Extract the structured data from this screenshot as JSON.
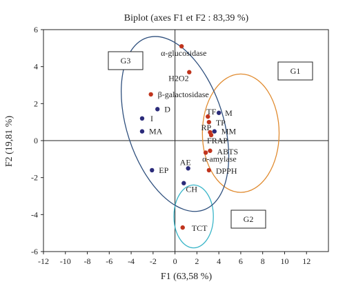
{
  "chart_data": {
    "type": "scatter",
    "title": "Biplot (axes F1 et F2 : 83,39 %)",
    "xlabel": "F1 (63,58 %)",
    "ylabel": "F2 (19,81 %)",
    "xlim": [
      -12,
      14
    ],
    "ylim": [
      -6,
      6
    ],
    "xticks": [
      -12,
      -10,
      -8,
      -6,
      -4,
      -2,
      0,
      2,
      4,
      6,
      8,
      10,
      12
    ],
    "yticks": [
      -6,
      -4,
      -2,
      0,
      2,
      4,
      6
    ],
    "grid": false,
    "legend": "none",
    "colors": {
      "variables": "#c0341d",
      "observations": "#2b2b7a"
    },
    "series": [
      {
        "points": [
          {
            "label": "α-glucosidase",
            "x": 0.6,
            "y": 5.1
          },
          {
            "label": "H2O2",
            "x": 1.3,
            "y": 3.7
          },
          {
            "label": "β-galactosidase",
            "x": -2.2,
            "y": 2.5
          },
          {
            "label": "TF",
            "x": 3.0,
            "y": 1.3
          },
          {
            "label": "TP",
            "x": 3.1,
            "y": 1.0
          },
          {
            "label": "RP",
            "x": 3.2,
            "y": 0.45
          },
          {
            "label": "FRAP",
            "x": 3.3,
            "y": 0.3
          },
          {
            "label": "ABTS",
            "x": 3.2,
            "y": -0.55
          },
          {
            "label": "α-amylase",
            "x": 2.8,
            "y": -0.65
          },
          {
            "label": "DPPH",
            "x": 3.1,
            "y": -1.6
          },
          {
            "label": "TCT",
            "x": 0.7,
            "y": -4.7
          }
        ]
      },
      {
        "points": [
          {
            "label": "D",
            "x": -1.6,
            "y": 1.7
          },
          {
            "label": "I",
            "x": -3.0,
            "y": 1.2
          },
          {
            "label": "MA",
            "x": -3.0,
            "y": 0.5
          },
          {
            "label": "M",
            "x": 4.0,
            "y": 1.5
          },
          {
            "label": "MM",
            "x": 3.6,
            "y": 0.5
          },
          {
            "label": "EP",
            "x": -2.1,
            "y": -1.6
          },
          {
            "label": "AE",
            "x": 1.2,
            "y": -1.5
          },
          {
            "label": "CH",
            "x": 0.8,
            "y": -2.3
          }
        ]
      }
    ],
    "groups": [
      {
        "label": "G1",
        "cx": 6.0,
        "cy": 0.4,
        "rx": 3.5,
        "ry": 3.2,
        "color": "#e08a2e"
      },
      {
        "label": "G2",
        "cx": 1.7,
        "cy": -4.1,
        "rx": 1.8,
        "ry": 1.7,
        "color": "#39b5c8"
      },
      {
        "label": "G3",
        "cx": 0.0,
        "cy": 0.9,
        "rx": 4.4,
        "ry": 4.9,
        "rotate": -18,
        "color": "#2e4f7d"
      }
    ]
  }
}
